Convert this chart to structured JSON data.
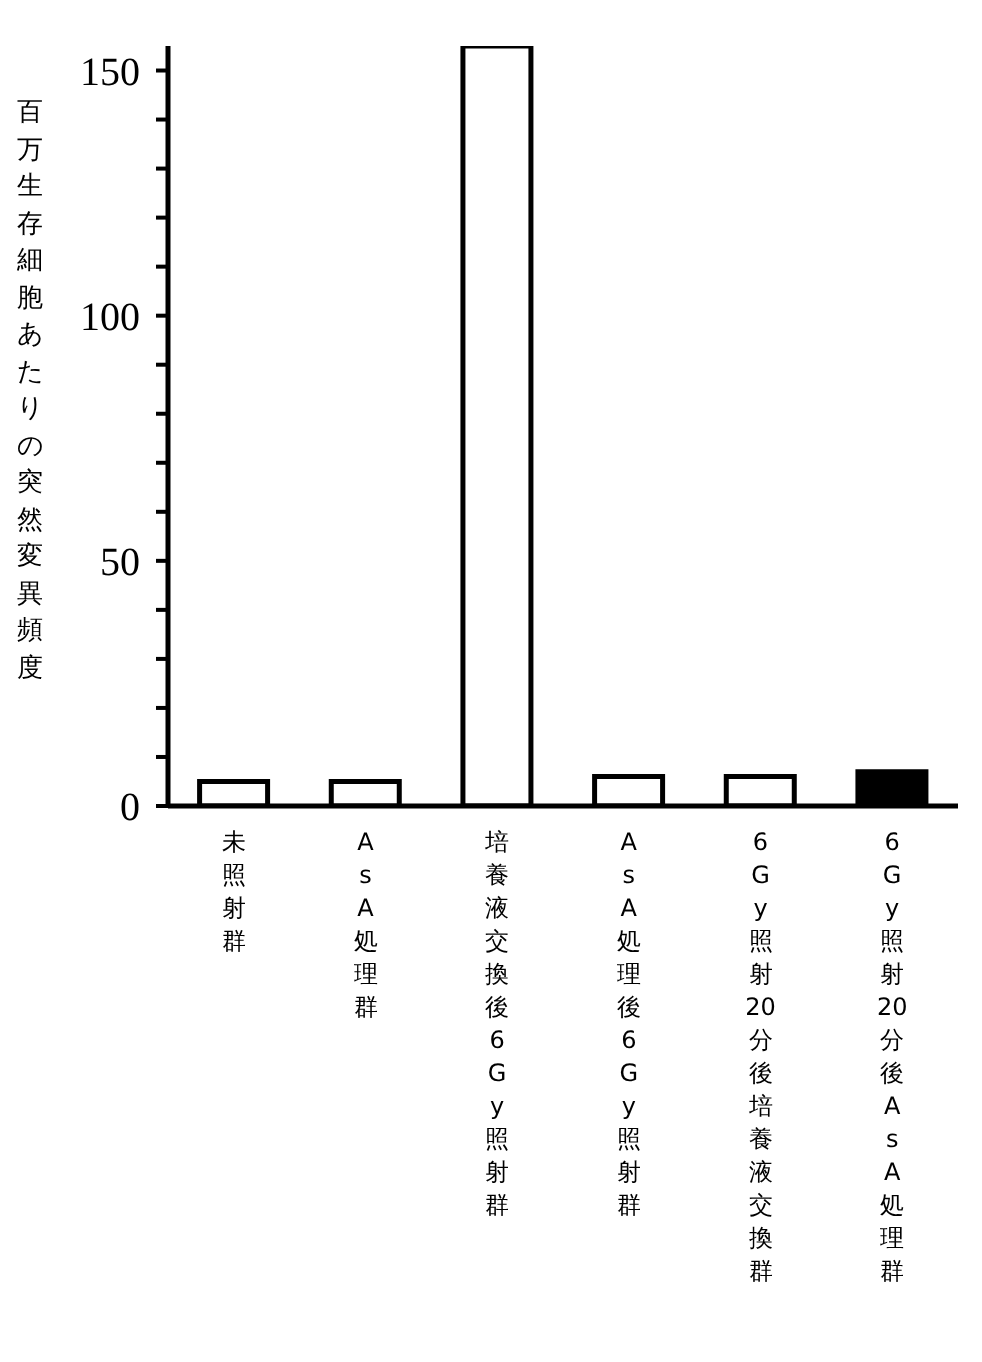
{
  "chart_data": {
    "type": "bar",
    "ylabel": "百万生存細胞あたりの突然変異頻度",
    "categories": [
      "未照射群",
      "AsA処理群",
      "培養液交換後6Gy照射群",
      "AsA処理後6Gy照射群",
      "6Gy照射20分後培養液交換群",
      "6Gy照射20分後AsA処理群"
    ],
    "values": [
      5,
      5,
      155,
      6,
      6,
      7
    ],
    "colors": [
      "#ffffff",
      "#ffffff",
      "#ffffff",
      "#ffffff",
      "#ffffff",
      "#000000"
    ],
    "ylim": [
      0,
      155
    ],
    "yticks": [
      0,
      {
        "value": 10,
        "label": null
      },
      {
        "value": 20,
        "label": null
      },
      {
        "value": 30,
        "label": null
      },
      {
        "value": 40,
        "label": null
      },
      50,
      {
        "value": 60,
        "label": null
      },
      {
        "value": 70,
        "label": null
      },
      {
        "value": 80,
        "label": null
      },
      {
        "value": 90,
        "label": null
      },
      100,
      {
        "value": 110,
        "label": null
      },
      {
        "value": 120,
        "label": null
      },
      {
        "value": 130,
        "label": null
      },
      {
        "value": 140,
        "label": null
      },
      150
    ],
    "grid": false,
    "legend": false
  }
}
